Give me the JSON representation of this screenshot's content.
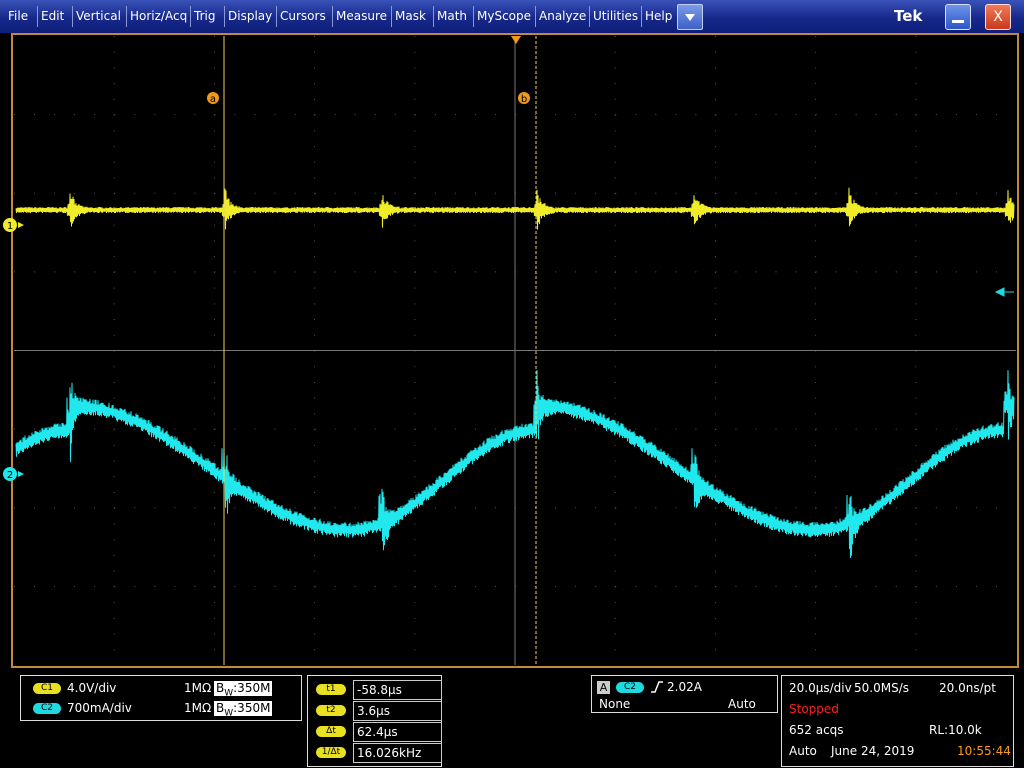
{
  "menu": [
    "File",
    "Edit",
    "Vertical",
    "Horiz/Acq",
    "Trig",
    "Display",
    "Cursors",
    "Measure",
    "Mask",
    "Math",
    "MyScope",
    "Analyze",
    "Utilities",
    "Help"
  ],
  "brand": "Tek",
  "close_button": "X",
  "screen": {
    "cursor_a": "a",
    "cursor_b": "b",
    "channel_1_marker": "1",
    "channel_2_marker": "2"
  },
  "channels": [
    {
      "badge": "C1",
      "scale": "4.0V/div",
      "impedance": "1MΩ",
      "bw_b": "B",
      "bw_w": "W",
      "bandwidth": ":350M"
    },
    {
      "badge": "C2",
      "scale": "700mA/div",
      "impedance": "1MΩ",
      "bw_b": "B",
      "bw_w": "W",
      "bandwidth": ":350M"
    }
  ],
  "cursor_readouts": [
    {
      "label": "t1",
      "value": "-58.8µs"
    },
    {
      "label": "t2",
      "value": "3.6µs"
    },
    {
      "label": "Δt",
      "value": "62.4µs"
    },
    {
      "label": "1/Δt",
      "value": "16.026kHz"
    }
  ],
  "trigger": {
    "type": "A",
    "source": "C2",
    "level": "2.02A",
    "coupling": "None",
    "mode": "Auto"
  },
  "acquisition": {
    "horizontal_scale": "20.0µs/div",
    "sample_rate": "50.0MS/s",
    "resolution": "20.0ns/pt",
    "state": "Stopped",
    "acquisitions": "652 acqs",
    "record_length": "RL:10.0k",
    "mode": "Auto",
    "date": "June 24, 2019",
    "time": "10:55:44"
  }
}
